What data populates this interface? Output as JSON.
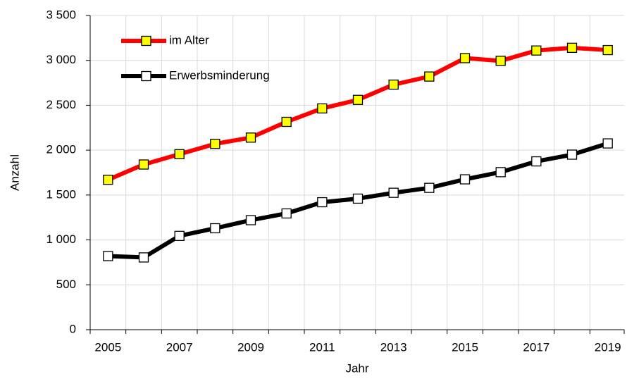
{
  "chart_data": {
    "type": "line",
    "x_label": "Jahr",
    "y_label": "Anzahl",
    "categories": [
      "2005",
      null,
      "2007",
      null,
      "2009",
      null,
      "2011",
      null,
      "2013",
      null,
      "2015",
      null,
      "2017",
      null,
      "2019"
    ],
    "series": [
      {
        "name": "im Alter",
        "color": "#ff0000",
        "marker_fill": "#ffff00",
        "values": [
          1670,
          1840,
          1955,
          2070,
          2140,
          2315,
          2465,
          2560,
          2730,
          2820,
          3025,
          2995,
          3110,
          3140,
          3115
        ]
      },
      {
        "name": "Erwerbsminderung",
        "color": "#000000",
        "marker_fill": "#ffffff",
        "values": [
          820,
          805,
          1045,
          1130,
          1220,
          1295,
          1420,
          1460,
          1525,
          1580,
          1675,
          1755,
          1875,
          1950,
          2075
        ]
      }
    ],
    "ylim": [
      0,
      3500
    ],
    "yticks": [
      0,
      500,
      {
        "value": 1000,
        "label": "1 000"
      },
      {
        "value": 1500,
        "label": "1 500"
      },
      {
        "value": 2000,
        "label": "2 000"
      },
      {
        "value": 2500,
        "label": "2 500"
      },
      {
        "value": 3000,
        "label": "3 000"
      },
      {
        "value": 3500,
        "label": "3 500"
      }
    ],
    "grid": true,
    "legend": "upper left"
  }
}
